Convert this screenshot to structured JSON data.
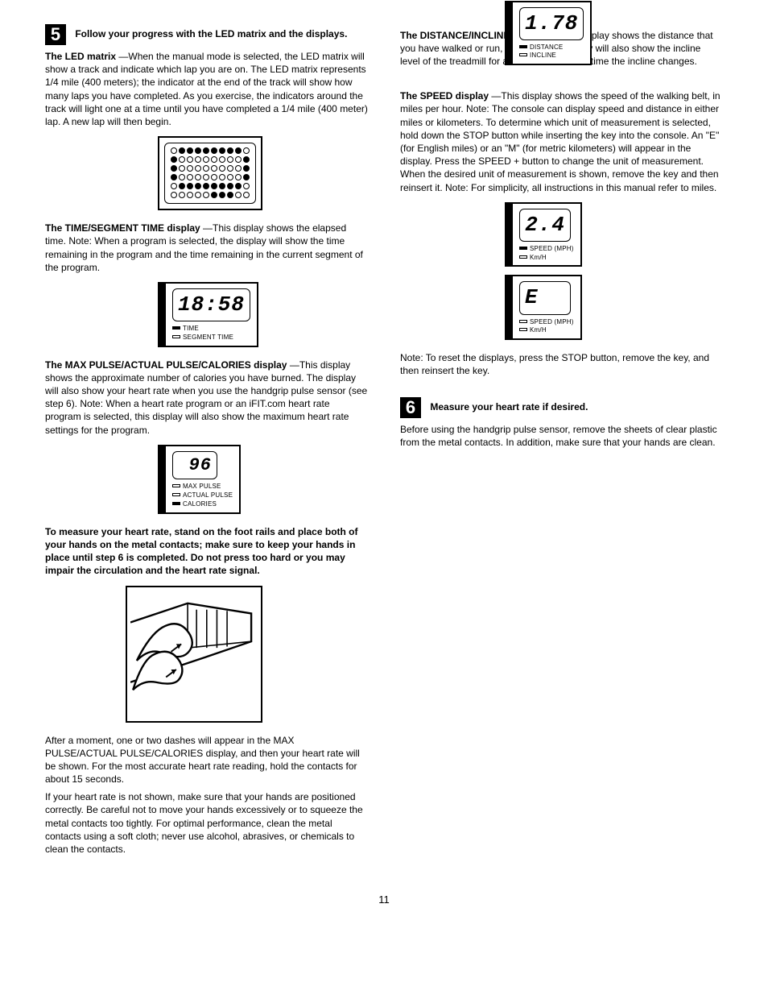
{
  "step5": {
    "num": "5",
    "title": "Follow your progress with the LED matrix and the displays.",
    "matrix_heading": "The LED matrix",
    "matrix_p1": "—When the manual mode is selected, the LED matrix will show a track and indicate which lap you are on. The LED matrix represents 1/4 mile (400 meters); the indicator at the end of the track will show how many laps you have completed. As you exercise, the indicators around the track will light one at a time until you have completed a 1/4 mile (400 meter) lap. A new lap will then begin.",
    "matrix_rows": [
      [
        0,
        1,
        1,
        1,
        1,
        1,
        1,
        1,
        1,
        0
      ],
      [
        1,
        0,
        0,
        0,
        0,
        0,
        0,
        0,
        0,
        1
      ],
      [
        1,
        0,
        0,
        0,
        0,
        0,
        0,
        0,
        0,
        1
      ],
      [
        1,
        0,
        0,
        0,
        0,
        0,
        0,
        0,
        0,
        1
      ],
      [
        0,
        1,
        1,
        1,
        1,
        1,
        1,
        1,
        1,
        0
      ],
      [
        0,
        0,
        0,
        0,
        0,
        1,
        1,
        1,
        0,
        0
      ]
    ],
    "time_heading": "The TIME/SEGMENT TIME display",
    "time_p1": "—This display shows the elapsed time. Note: When a program is selected, the display will show the time remaining in the program and the time remaining in the current segment of the program.",
    "lcd_time_value": "18:58",
    "ind_time1": "TIME",
    "ind_time2": "SEGMENT TIME",
    "pulse_heading": "The MAX PULSE/ACTUAL PULSE/CALORIES display",
    "pulse_p1": "—This display shows the approximate number of calories you have burned. The display will also show your heart rate when you use the handgrip pulse sensor (see step 6). Note: When a heart rate program or an iFIT.com heart rate program is selected, this display will also show the maximum heart rate settings for the program.",
    "lcd_pulse_value": "96",
    "ind_pulse1": "MAX PULSE",
    "ind_pulse2": "ACTUAL PULSE",
    "ind_pulse3": "CALORIES",
    "hands_heading": "To measure your heart rate, stand on the foot rails and place both of your hands on the metal contacts; make sure to keep your hands in place until step 6 is completed. Do not press too hard or you may impair the circulation and the heart rate signal.",
    "hands_p2": "After a moment, one or two dashes will appear in the MAX PULSE/ACTUAL PULSE/CALORIES display, and then your heart rate will be shown. For the most accurate heart rate reading, hold the contacts for about 15 seconds.",
    "hands_note": "If your heart rate is not shown, make sure that your hands are positioned correctly. Be careful not to move your hands excessively or to squeeze the metal contacts too tightly. For optimal performance, clean the metal contacts using a soft cloth; never use alcohol, abrasives, or chemicals to clean the contacts."
  },
  "right": {
    "dist_heading": "The DISTANCE/INCLINE display",
    "dist_p1": "—This display shows the distance that you have walked or run, in miles. The display will also show the incline level of the treadmill for a few seconds each time the incline changes.",
    "lcd_dist_value": "1.78",
    "ind_dist1": "DISTANCE",
    "ind_dist2": "INCLINE",
    "speed_heading": "The SPEED display",
    "speed_p1": "—This display shows the speed of the walking belt, in miles per hour. Note: The console can display speed and distance in either miles or kilometers. To determine which unit of measurement is selected, hold down the STOP button while inserting the key into the console. An \"E\" (for English miles) or an \"M\" (for metric kilometers) will appear in the display. Press the SPEED + button to change the unit of measurement. When the desired unit of measurement is shown, remove the key and then reinsert it. Note: For simplicity, all instructions in this manual refer to miles.",
    "lcd_speed_value": "2.4",
    "lcd_speed_e": "E",
    "ind_speed1": "SPEED  (MPH)",
    "ind_speed2": "Km/H",
    "reset_note": "Note: To reset the displays, press the STOP button, remove the key, and then reinsert the key."
  },
  "step6": {
    "num": "6",
    "title": "Measure your heart rate if desired.",
    "p1": "Before using the handgrip pulse sensor, remove the sheets of clear plastic from the metal contacts. In addition, make sure that your hands are clean."
  },
  "page_number": "11"
}
